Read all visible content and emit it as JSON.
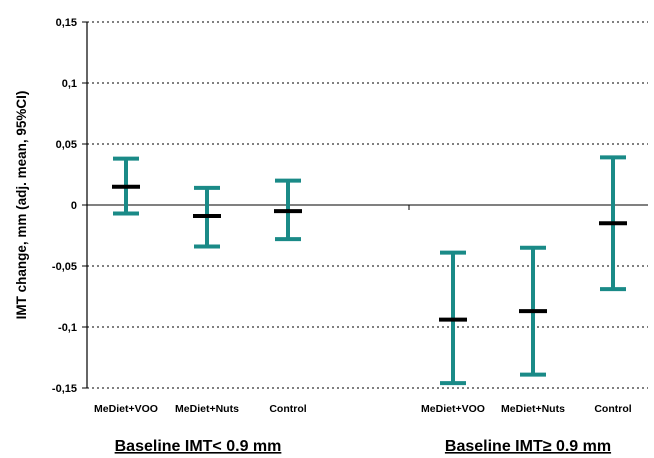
{
  "chart_data": {
    "type": "errorbar",
    "ylabel": "IMT change, mm (adj. mean, 95%CI)",
    "ylim": [
      -0.15,
      0.15
    ],
    "yticks": [
      {
        "value": 0.15,
        "label": "0,15"
      },
      {
        "value": 0.1,
        "label": "0,1"
      },
      {
        "value": 0.05,
        "label": "0,05"
      },
      {
        "value": 0,
        "label": "0"
      },
      {
        "value": -0.05,
        "label": "-0,05"
      },
      {
        "value": -0.1,
        "label": "-0,1"
      },
      {
        "value": -0.15,
        "label": "-0,15"
      }
    ],
    "grid": "horizontal dashed",
    "groups": [
      {
        "label": "Baseline IMT< 0.9 mm",
        "categories": [
          {
            "name": "MeDiet+VOO",
            "mean": 0.015,
            "lower": -0.007,
            "upper": 0.038
          },
          {
            "name": "MeDiet+Nuts",
            "mean": -0.009,
            "lower": -0.034,
            "upper": 0.014
          },
          {
            "name": "Control",
            "mean": -0.005,
            "lower": -0.028,
            "upper": 0.02
          }
        ]
      },
      {
        "label": "Baseline IMT≥ 0.9 mm",
        "categories": [
          {
            "name": "MeDiet+VOO",
            "mean": -0.094,
            "lower": -0.146,
            "upper": -0.039
          },
          {
            "name": "MeDiet+Nuts",
            "mean": -0.087,
            "lower": -0.139,
            "upper": -0.035
          },
          {
            "name": "Control",
            "mean": -0.015,
            "lower": -0.069,
            "upper": 0.039
          }
        ]
      }
    ],
    "colors": {
      "whisker": "#1a8a87",
      "mean": "#000000",
      "grid": "#000000"
    }
  }
}
